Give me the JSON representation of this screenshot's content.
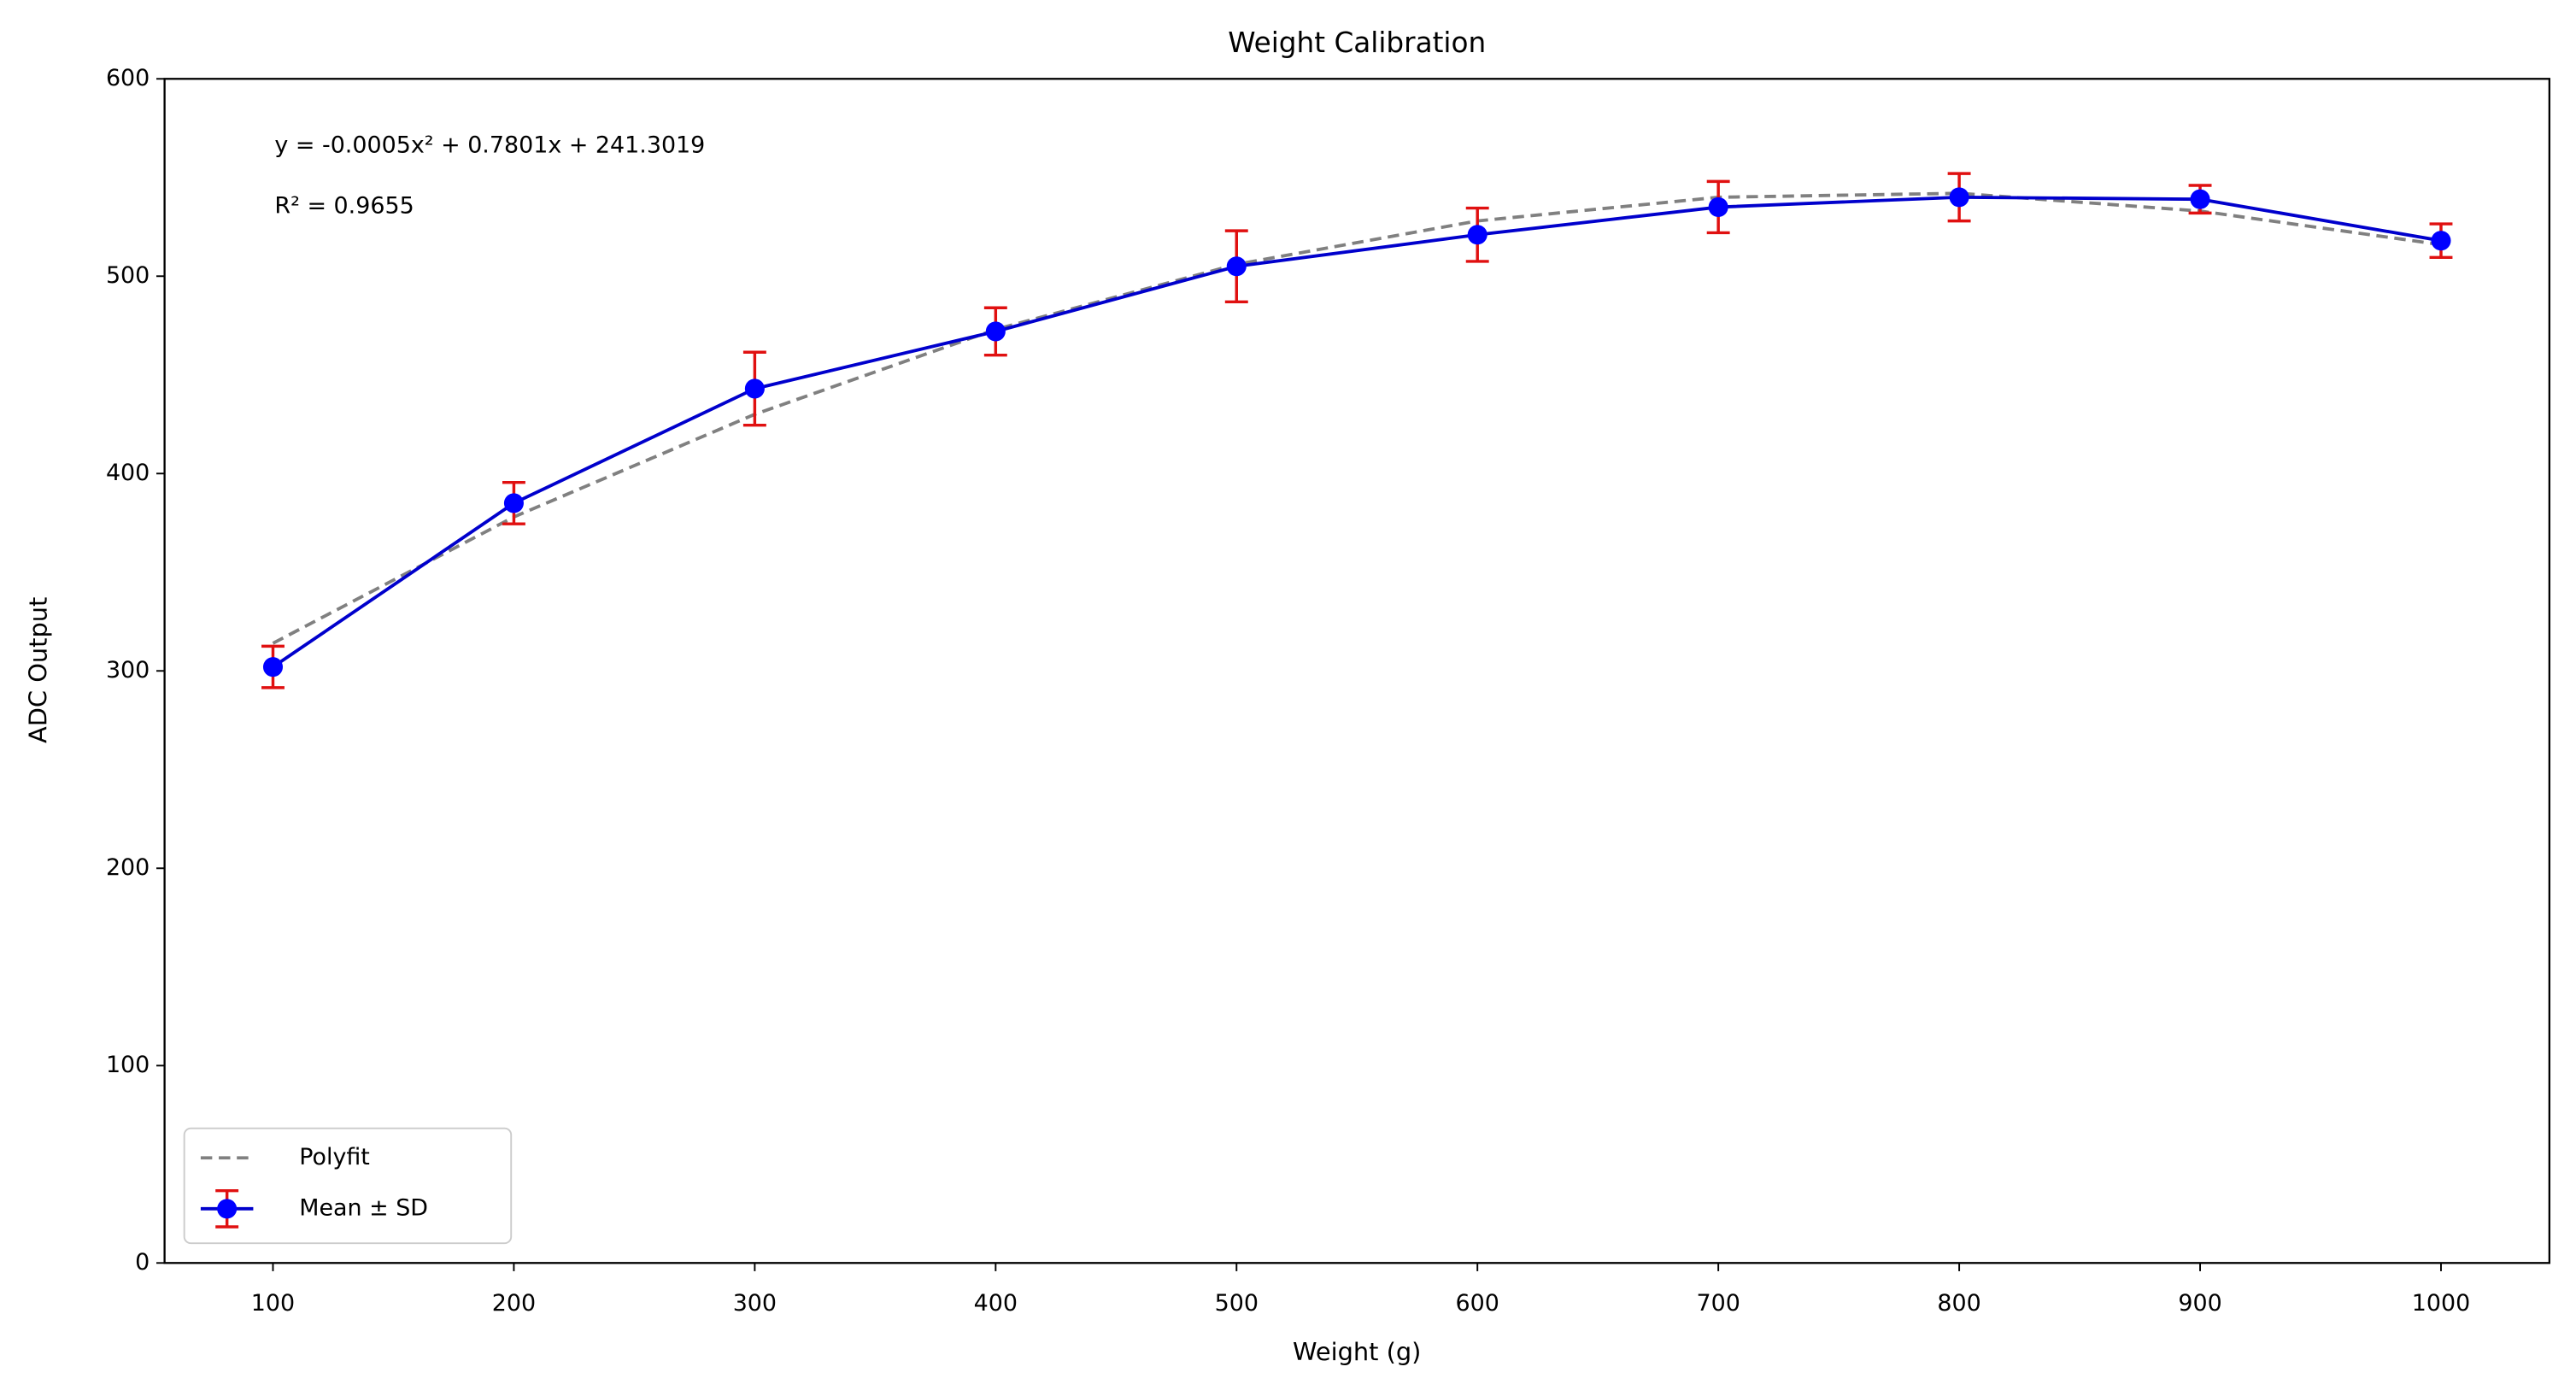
{
  "chart_data": {
    "type": "line",
    "title": "Weight Calibration",
    "xlabel": "Weight (g)",
    "ylabel": "ADC Output",
    "annotations": [
      "y = -0.0005x² + 0.7801x + 241.3019",
      "R² = 0.9655"
    ],
    "x": [
      100,
      200,
      300,
      400,
      500,
      600,
      700,
      800,
      900,
      1000
    ],
    "xlim": [
      55,
      1045
    ],
    "ylim": [
      0,
      600
    ],
    "xticks": [
      100,
      200,
      300,
      400,
      500,
      600,
      700,
      800,
      900,
      1000
    ],
    "yticks": [
      0,
      100,
      200,
      300,
      400,
      500,
      600
    ],
    "legend": "lower left",
    "series": [
      {
        "name": "Polyfit",
        "color": "#808080",
        "dashed": true,
        "values": [
          314,
          378,
          430,
          473,
          506,
          528,
          540,
          542,
          533,
          516
        ]
      },
      {
        "name": "Mean ± SD",
        "color": "#0000cc",
        "marker_color": "#0000ff",
        "error_color": "#e01010",
        "values": [
          302,
          385,
          443,
          472,
          505,
          521,
          535,
          540,
          539,
          518
        ],
        "errors": [
          10.5,
          10.5,
          18.5,
          12,
          18,
          13.5,
          13,
          12,
          7,
          8.5
        ]
      }
    ]
  }
}
